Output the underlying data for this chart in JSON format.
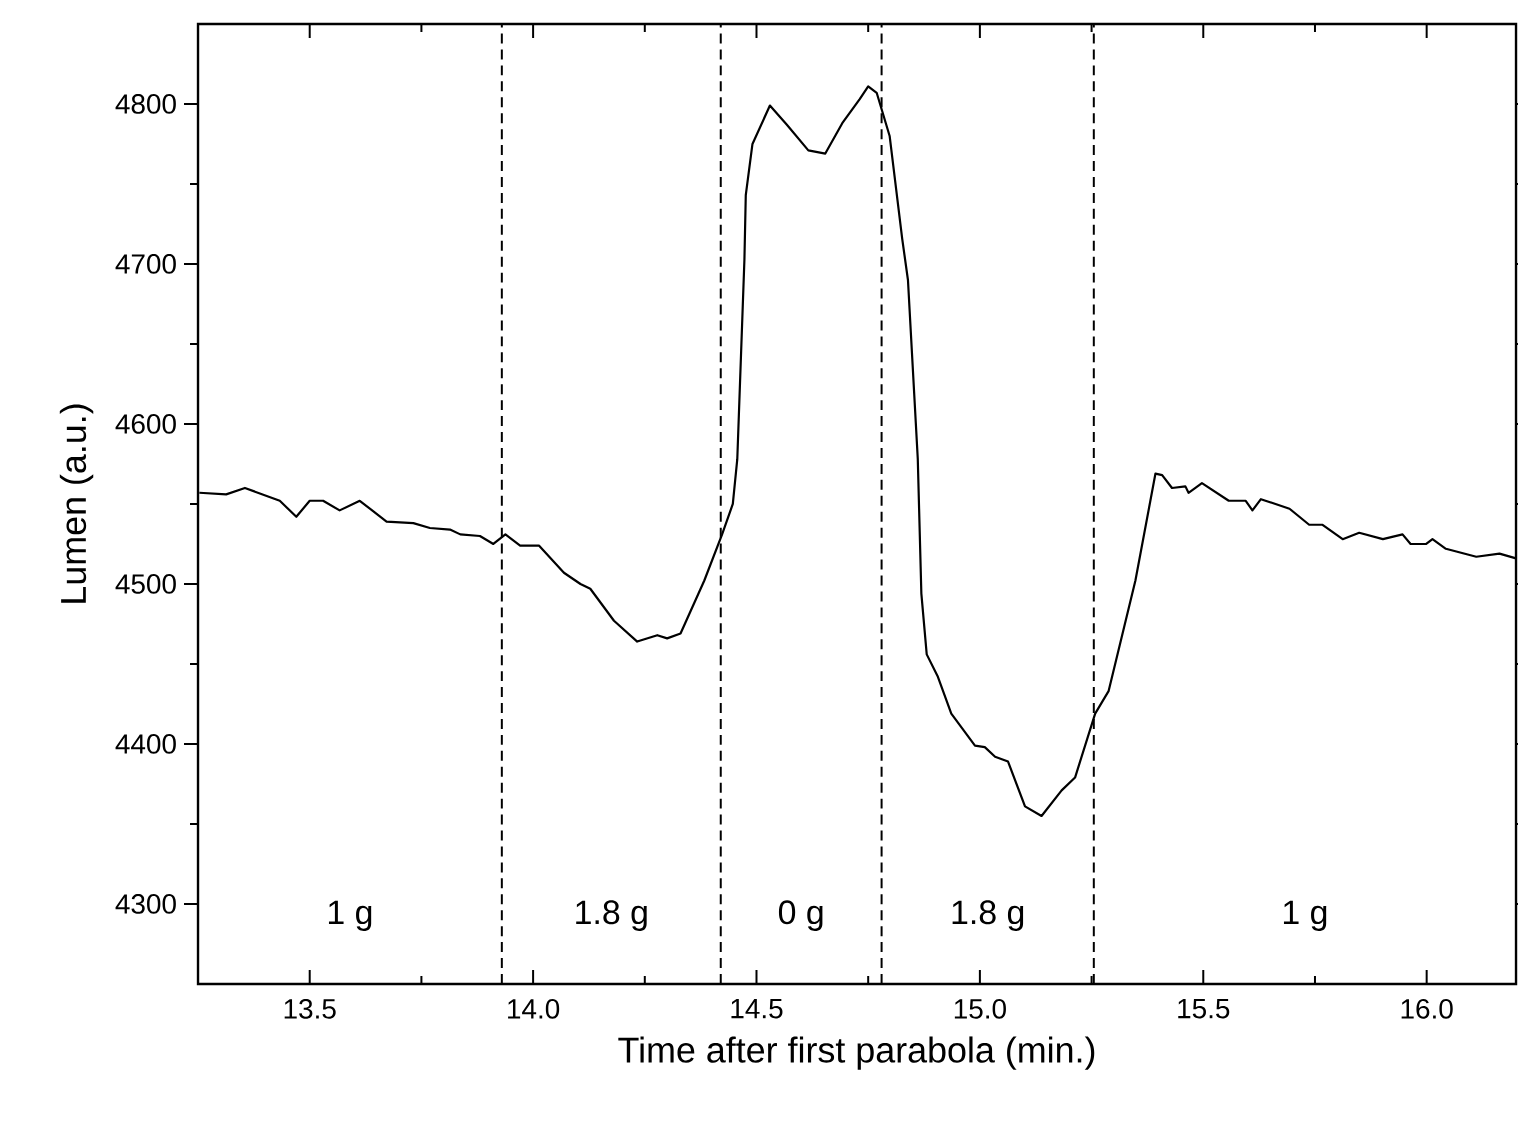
{
  "chart_data": {
    "type": "line",
    "xlabel": "Time after first parabola (min.)",
    "ylabel": "Lumen (a.u.)",
    "xlim": [
      13.25,
      16.2
    ],
    "ylim": [
      4250,
      4850
    ],
    "xticks": [
      13.5,
      {
        "value": 14.0,
        "label": "14.0"
      },
      14.5,
      {
        "value": 15.0,
        "label": "15.0"
      },
      15.5,
      {
        "value": 16.0,
        "label": "16.0"
      }
    ],
    "yticks": [
      4300,
      4400,
      4500,
      4600,
      4700,
      4800
    ],
    "series": [
      {
        "color": "#000000",
        "x": [
          13.253,
          13.313,
          13.355,
          13.433,
          13.47,
          13.5,
          13.53,
          13.567,
          13.612,
          13.672,
          13.732,
          13.769,
          13.814,
          13.837,
          13.881,
          13.911,
          13.938,
          13.971,
          14.013,
          14.069,
          14.106,
          14.128,
          14.181,
          14.233,
          14.278,
          14.3,
          14.33,
          14.383,
          14.423,
          14.447,
          14.457,
          14.473,
          14.476,
          14.491,
          14.53,
          14.568,
          14.616,
          14.654,
          14.692,
          14.731,
          14.75,
          14.769,
          14.798,
          14.826,
          14.839,
          14.861,
          14.869,
          14.881,
          14.906,
          14.936,
          14.989,
          15.011,
          15.034,
          15.063,
          15.101,
          15.138,
          15.183,
          15.213,
          15.258,
          15.288,
          15.348,
          15.393,
          15.408,
          15.43,
          15.46,
          15.467,
          15.497,
          15.557,
          15.595,
          15.61,
          15.629,
          15.693,
          15.737,
          15.767,
          15.812,
          15.849,
          15.902,
          15.946,
          15.964,
          15.999,
          16.013,
          16.043,
          16.111,
          16.163,
          16.2
        ],
        "values": [
          4557,
          4556,
          4560,
          4552,
          4542,
          4552,
          4552,
          4546,
          4552,
          4539,
          4538,
          4535,
          4534,
          4531,
          4530,
          4525,
          4531,
          4524,
          4524,
          4507,
          4500,
          4497,
          4477,
          4464,
          4468,
          4466,
          4469,
          4502,
          4531,
          4550,
          4578,
          4703,
          4743,
          4775,
          4799,
          4787,
          4771,
          4769,
          4788,
          4803,
          4811,
          4807,
          4780,
          4716,
          4690,
          4578,
          4494,
          4456,
          4442,
          4419,
          4399,
          4398,
          4392,
          4389,
          4361,
          4355,
          4371,
          4379,
          4419,
          4433,
          4502,
          4569,
          4568,
          4560,
          4561,
          4557,
          4563,
          4552,
          4552,
          4546,
          4553,
          4547,
          4537,
          4537,
          4528,
          4532,
          4528,
          4531,
          4525,
          4525,
          4528,
          4522,
          4517,
          4519,
          4516
        ]
      }
    ],
    "ref_lines": [
      {
        "axis": "x",
        "value": 13.93,
        "line_style": "dashed",
        "color": "#000000"
      },
      {
        "axis": "x",
        "value": 14.42,
        "line_style": "dashed",
        "color": "#000000"
      },
      {
        "axis": "x",
        "value": 14.78,
        "line_style": "dashed",
        "color": "#000000"
      },
      {
        "axis": "x",
        "value": 15.255,
        "line_style": "dashed",
        "color": "#000000"
      }
    ],
    "annotations": [
      "1 g",
      "1.8 g",
      "0 g",
      "1.8 g",
      "1 g"
    ],
    "grid": false,
    "marker": "none",
    "line_style": "solid"
  }
}
